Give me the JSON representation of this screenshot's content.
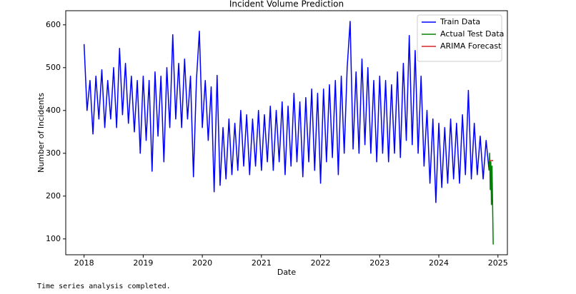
{
  "chart_data": {
    "type": "line",
    "title": "Incident Volume Prediction",
    "x_label": "Date",
    "y_label": "Number of Incidents",
    "xlim": [
      2017.69,
      2025.16
    ],
    "xticks": [
      2018,
      2019,
      2020,
      2021,
      2022,
      2023,
      2024,
      2025
    ],
    "ylim": [
      63,
      633
    ],
    "yticks": [
      100,
      200,
      300,
      400,
      500,
      600
    ],
    "legend": "upper right",
    "grid": false,
    "series": [
      {
        "name": "Train Data",
        "color": "#0000ff",
        "x": [
          2018.0,
          2018.05,
          2018.1,
          2018.15,
          2018.2,
          2018.25,
          2018.3,
          2018.35,
          2018.4,
          2018.45,
          2018.5,
          2018.55,
          2018.6,
          2018.65,
          2018.7,
          2018.75,
          2018.8,
          2018.85,
          2018.9,
          2018.95,
          2019.0,
          2019.05,
          2019.1,
          2019.15,
          2019.2,
          2019.25,
          2019.3,
          2019.35,
          2019.4,
          2019.45,
          2019.5,
          2019.55,
          2019.6,
          2019.65,
          2019.7,
          2019.75,
          2019.8,
          2019.85,
          2019.9,
          2019.95,
          2020.0,
          2020.05,
          2020.1,
          2020.15,
          2020.2,
          2020.25,
          2020.3,
          2020.35,
          2020.4,
          2020.45,
          2020.5,
          2020.55,
          2020.6,
          2020.65,
          2020.7,
          2020.75,
          2020.8,
          2020.85,
          2020.9,
          2020.95,
          2021.0,
          2021.05,
          2021.1,
          2021.15,
          2021.2,
          2021.25,
          2021.3,
          2021.35,
          2021.4,
          2021.45,
          2021.5,
          2021.55,
          2021.6,
          2021.65,
          2021.7,
          2021.75,
          2021.8,
          2021.85,
          2021.9,
          2021.95,
          2022.0,
          2022.05,
          2022.1,
          2022.15,
          2022.2,
          2022.25,
          2022.3,
          2022.35,
          2022.4,
          2022.45,
          2022.5,
          2022.55,
          2022.6,
          2022.65,
          2022.7,
          2022.75,
          2022.8,
          2022.85,
          2022.9,
          2022.95,
          2023.0,
          2023.05,
          2023.1,
          2023.15,
          2023.2,
          2023.25,
          2023.3,
          2023.35,
          2023.4,
          2023.45,
          2023.5,
          2023.55,
          2023.6,
          2023.65,
          2023.7,
          2023.75,
          2023.8,
          2023.85,
          2023.9,
          2023.95,
          2024.0,
          2024.05,
          2024.1,
          2024.15,
          2024.2,
          2024.25,
          2024.3,
          2024.35,
          2024.4,
          2024.45,
          2024.5,
          2024.55,
          2024.6,
          2024.65,
          2024.7,
          2024.75,
          2024.8,
          2024.85
        ],
        "values": [
          555,
          400,
          470,
          345,
          480,
          380,
          495,
          360,
          470,
          380,
          500,
          360,
          545,
          390,
          510,
          370,
          480,
          350,
          470,
          300,
          480,
          330,
          470,
          258,
          490,
          340,
          480,
          280,
          500,
          360,
          577,
          380,
          510,
          360,
          520,
          380,
          480,
          245,
          470,
          585,
          360,
          470,
          330,
          455,
          210,
          482,
          225,
          360,
          240,
          380,
          250,
          370,
          260,
          400,
          270,
          390,
          250,
          380,
          270,
          400,
          260,
          390,
          280,
          410,
          260,
          400,
          280,
          420,
          250,
          410,
          270,
          440,
          280,
          420,
          245,
          430,
          280,
          450,
          260,
          440,
          230,
          450,
          280,
          460,
          290,
          470,
          250,
          480,
          300,
          500,
          608,
          310,
          490,
          300,
          520,
          320,
          500,
          300,
          470,
          280,
          480,
          300,
          470,
          280,
          460,
          300,
          490,
          290,
          510,
          330,
          575,
          320,
          540,
          300,
          480,
          270,
          400,
          230,
          380,
          185,
          370,
          220,
          360,
          230,
          380,
          240,
          370,
          230,
          390,
          250,
          447,
          240,
          370,
          250,
          340,
          240,
          330,
          260
        ]
      },
      {
        "name": "Actual Test Data",
        "color": "#008000",
        "x": [
          2024.85,
          2024.86,
          2024.87,
          2024.88,
          2024.89,
          2024.9,
          2024.92
        ],
        "values": [
          260,
          300,
          215,
          280,
          180,
          270,
          87
        ]
      },
      {
        "name": "ARIMA Forecast",
        "color": "#d62728",
        "x": [
          2024.85,
          2024.92
        ],
        "values": [
          283,
          283
        ]
      }
    ]
  },
  "console_output": "Time series analysis completed."
}
